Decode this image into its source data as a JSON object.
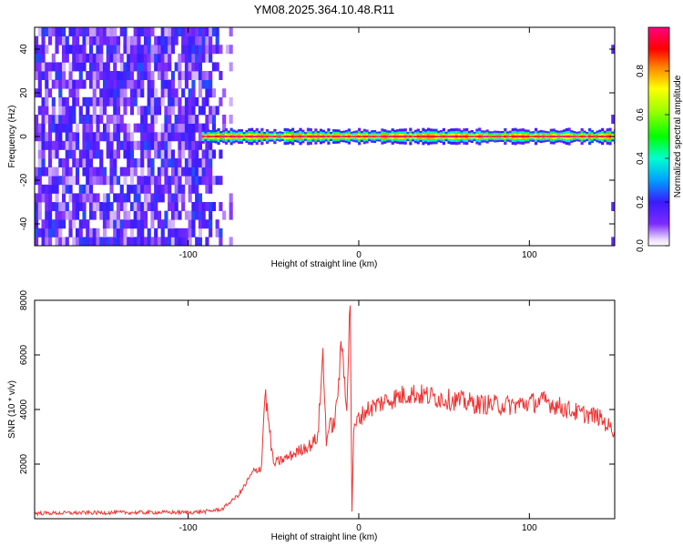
{
  "title": "YM08.2025.364.10.48.R11",
  "chart_data": [
    {
      "type": "heatmap",
      "xlabel": "Height of straight line (km)",
      "ylabel": "Frequency (Hz)",
      "xlim": [
        -190,
        150
      ],
      "ylim": [
        -50,
        50
      ],
      "xticks": [
        -100,
        0,
        100
      ],
      "xtick_labels": [
        "-100",
        "0",
        "100"
      ],
      "yticks": [
        -40,
        -20,
        0,
        20,
        40
      ],
      "ytick_labels": [
        "-40",
        "-20",
        "0",
        "20",
        "40"
      ],
      "colorbar": {
        "label": "Normalized spectral amplitude",
        "range": [
          0,
          1
        ],
        "ticks": [
          0,
          0.2,
          0.4,
          0.6,
          0.8
        ],
        "tick_labels": [
          "0.0",
          "0.2",
          "0.4",
          "0.6",
          "0.8"
        ]
      },
      "regions": [
        {
          "name": "broadband noise",
          "x_range": [
            -190,
            -82
          ],
          "freq_range": [
            -50,
            50
          ],
          "amplitude": 0.15
        },
        {
          "name": "zero-frequency ridge",
          "x_range": [
            -92,
            150
          ],
          "freq_center": 0,
          "half_width": [
            2,
            4
          ],
          "peak_amplitude": 1.0
        },
        {
          "name": "edge streak",
          "x_range": [
            147,
            150
          ],
          "freq_range": [
            -50,
            50
          ],
          "amplitude": 0.12
        }
      ]
    },
    {
      "type": "line",
      "xlabel": "Height of straight line (km)",
      "ylabel": "SNR (10 * v/v)",
      "xlim": [
        -190,
        150
      ],
      "ylim": [
        0,
        8000
      ],
      "xticks": [
        -100,
        0,
        100
      ],
      "xtick_labels": [
        "-100",
        "0",
        "100"
      ],
      "yticks": [
        2000,
        4000,
        6000,
        8000
      ],
      "ytick_labels": [
        "2000",
        "4000",
        "6000",
        "8000"
      ],
      "series": [
        {
          "name": "SNR",
          "color": "#ee3333",
          "x": [
            -190,
            -150,
            -120,
            -100,
            -90,
            -80,
            -70,
            -62,
            -57,
            -55,
            -50,
            -40,
            -32,
            -28,
            -24,
            -21,
            -19,
            -17,
            -14,
            -10,
            -7,
            -5,
            -4,
            -3,
            -1,
            5,
            15,
            30,
            40,
            50,
            70,
            90,
            100,
            110,
            120,
            130,
            140,
            150
          ],
          "y": [
            200,
            220,
            230,
            230,
            260,
            350,
            900,
            1700,
            1900,
            4700,
            2000,
            2300,
            2600,
            2700,
            3000,
            6050,
            2900,
            3400,
            3500,
            6350,
            4200,
            8000,
            300,
            3100,
            3600,
            4000,
            4300,
            4600,
            4500,
            4400,
            4200,
            4150,
            4250,
            4300,
            4050,
            3850,
            3750,
            3200
          ]
        }
      ]
    }
  ]
}
